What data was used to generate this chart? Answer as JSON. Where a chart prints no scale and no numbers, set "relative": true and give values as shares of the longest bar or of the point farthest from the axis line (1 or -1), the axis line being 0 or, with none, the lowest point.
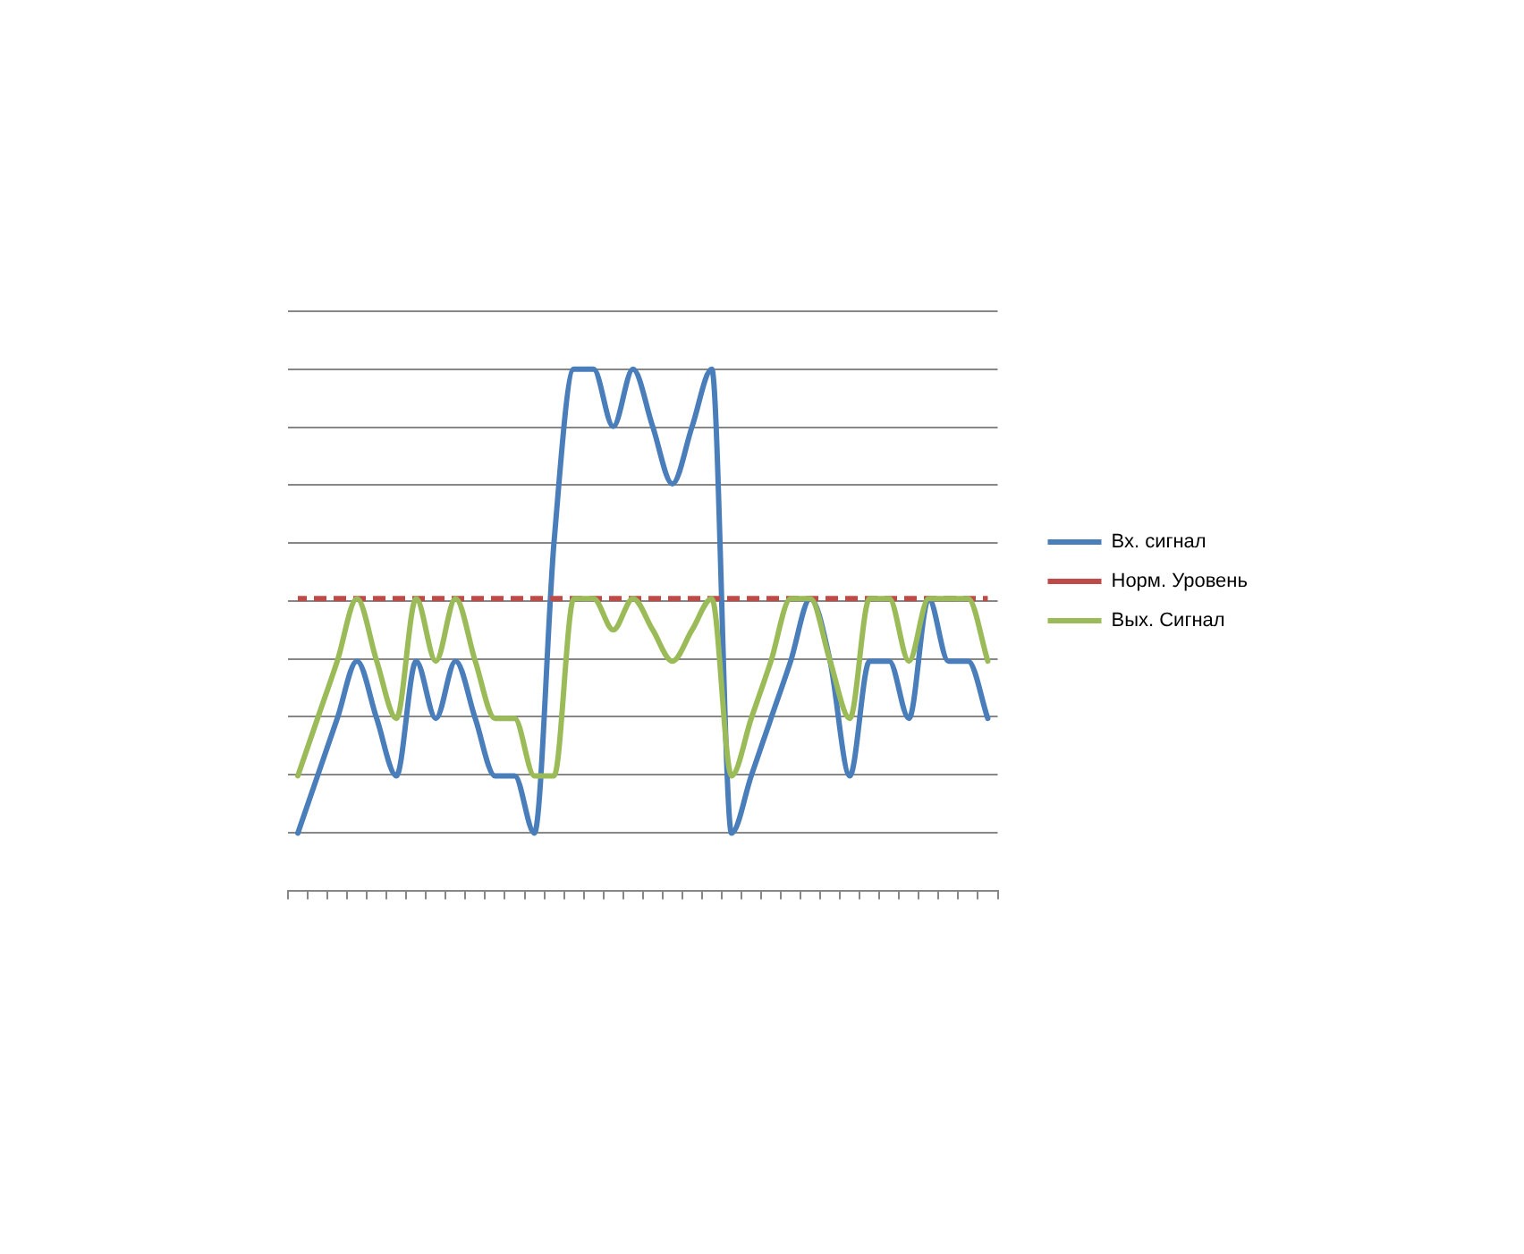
{
  "chart_data": {
    "type": "line",
    "relative": true,
    "categories": [
      null,
      null,
      null,
      null,
      null,
      null,
      null,
      null,
      null,
      null,
      null,
      null,
      null,
      null,
      null,
      null,
      null,
      null,
      null,
      null,
      null,
      null,
      null,
      null,
      null,
      null,
      null,
      null,
      null,
      null,
      null,
      null,
      null,
      null,
      null,
      null
    ],
    "series": [
      {
        "name": "Вх. сигнал",
        "color": "#4a7ebb",
        "values": [
          0.11,
          0.22,
          0.33,
          0.44,
          0.33,
          0.22,
          0.44,
          0.33,
          0.44,
          0.33,
          0.22,
          0.22,
          0.11,
          0.67,
          1,
          1,
          0.89,
          1,
          0.89,
          0.78,
          0.89,
          1,
          0.11,
          0.22,
          0.33,
          0.44,
          0.56,
          0.44,
          0.22,
          0.44,
          0.44,
          0.33,
          0.56,
          0.44,
          0.44,
          0.33
        ]
      },
      {
        "name": "Норм. Уровень",
        "color": "#be4b48",
        "line_style": "dashed",
        "values": [
          0.56,
          0.56,
          0.56,
          0.56,
          0.56,
          0.56,
          0.56,
          0.56,
          0.56,
          0.56,
          0.56,
          0.56,
          0.56,
          0.56,
          0.56,
          0.56,
          0.56,
          0.56,
          0.56,
          0.56,
          0.56,
          0.56,
          0.56,
          0.56,
          0.56,
          0.56,
          0.56,
          0.56,
          0.56,
          0.56,
          0.56,
          0.56,
          0.56,
          0.56,
          0.56,
          0.56
        ]
      },
      {
        "name": "Вых. Сигнал",
        "color": "#9bbb59",
        "values": [
          0.22,
          0.33,
          0.44,
          0.56,
          0.44,
          0.33,
          0.56,
          0.44,
          0.56,
          0.44,
          0.33,
          0.33,
          0.22,
          0.22,
          0.56,
          0.56,
          0.5,
          0.56,
          0.5,
          0.44,
          0.5,
          0.56,
          0.22,
          0.33,
          0.44,
          0.56,
          0.56,
          0.44,
          0.33,
          0.56,
          0.56,
          0.44,
          0.56,
          0.56,
          0.56,
          0.44
        ]
      }
    ],
    "grid": "y",
    "legend": "right",
    "marker": "none"
  }
}
